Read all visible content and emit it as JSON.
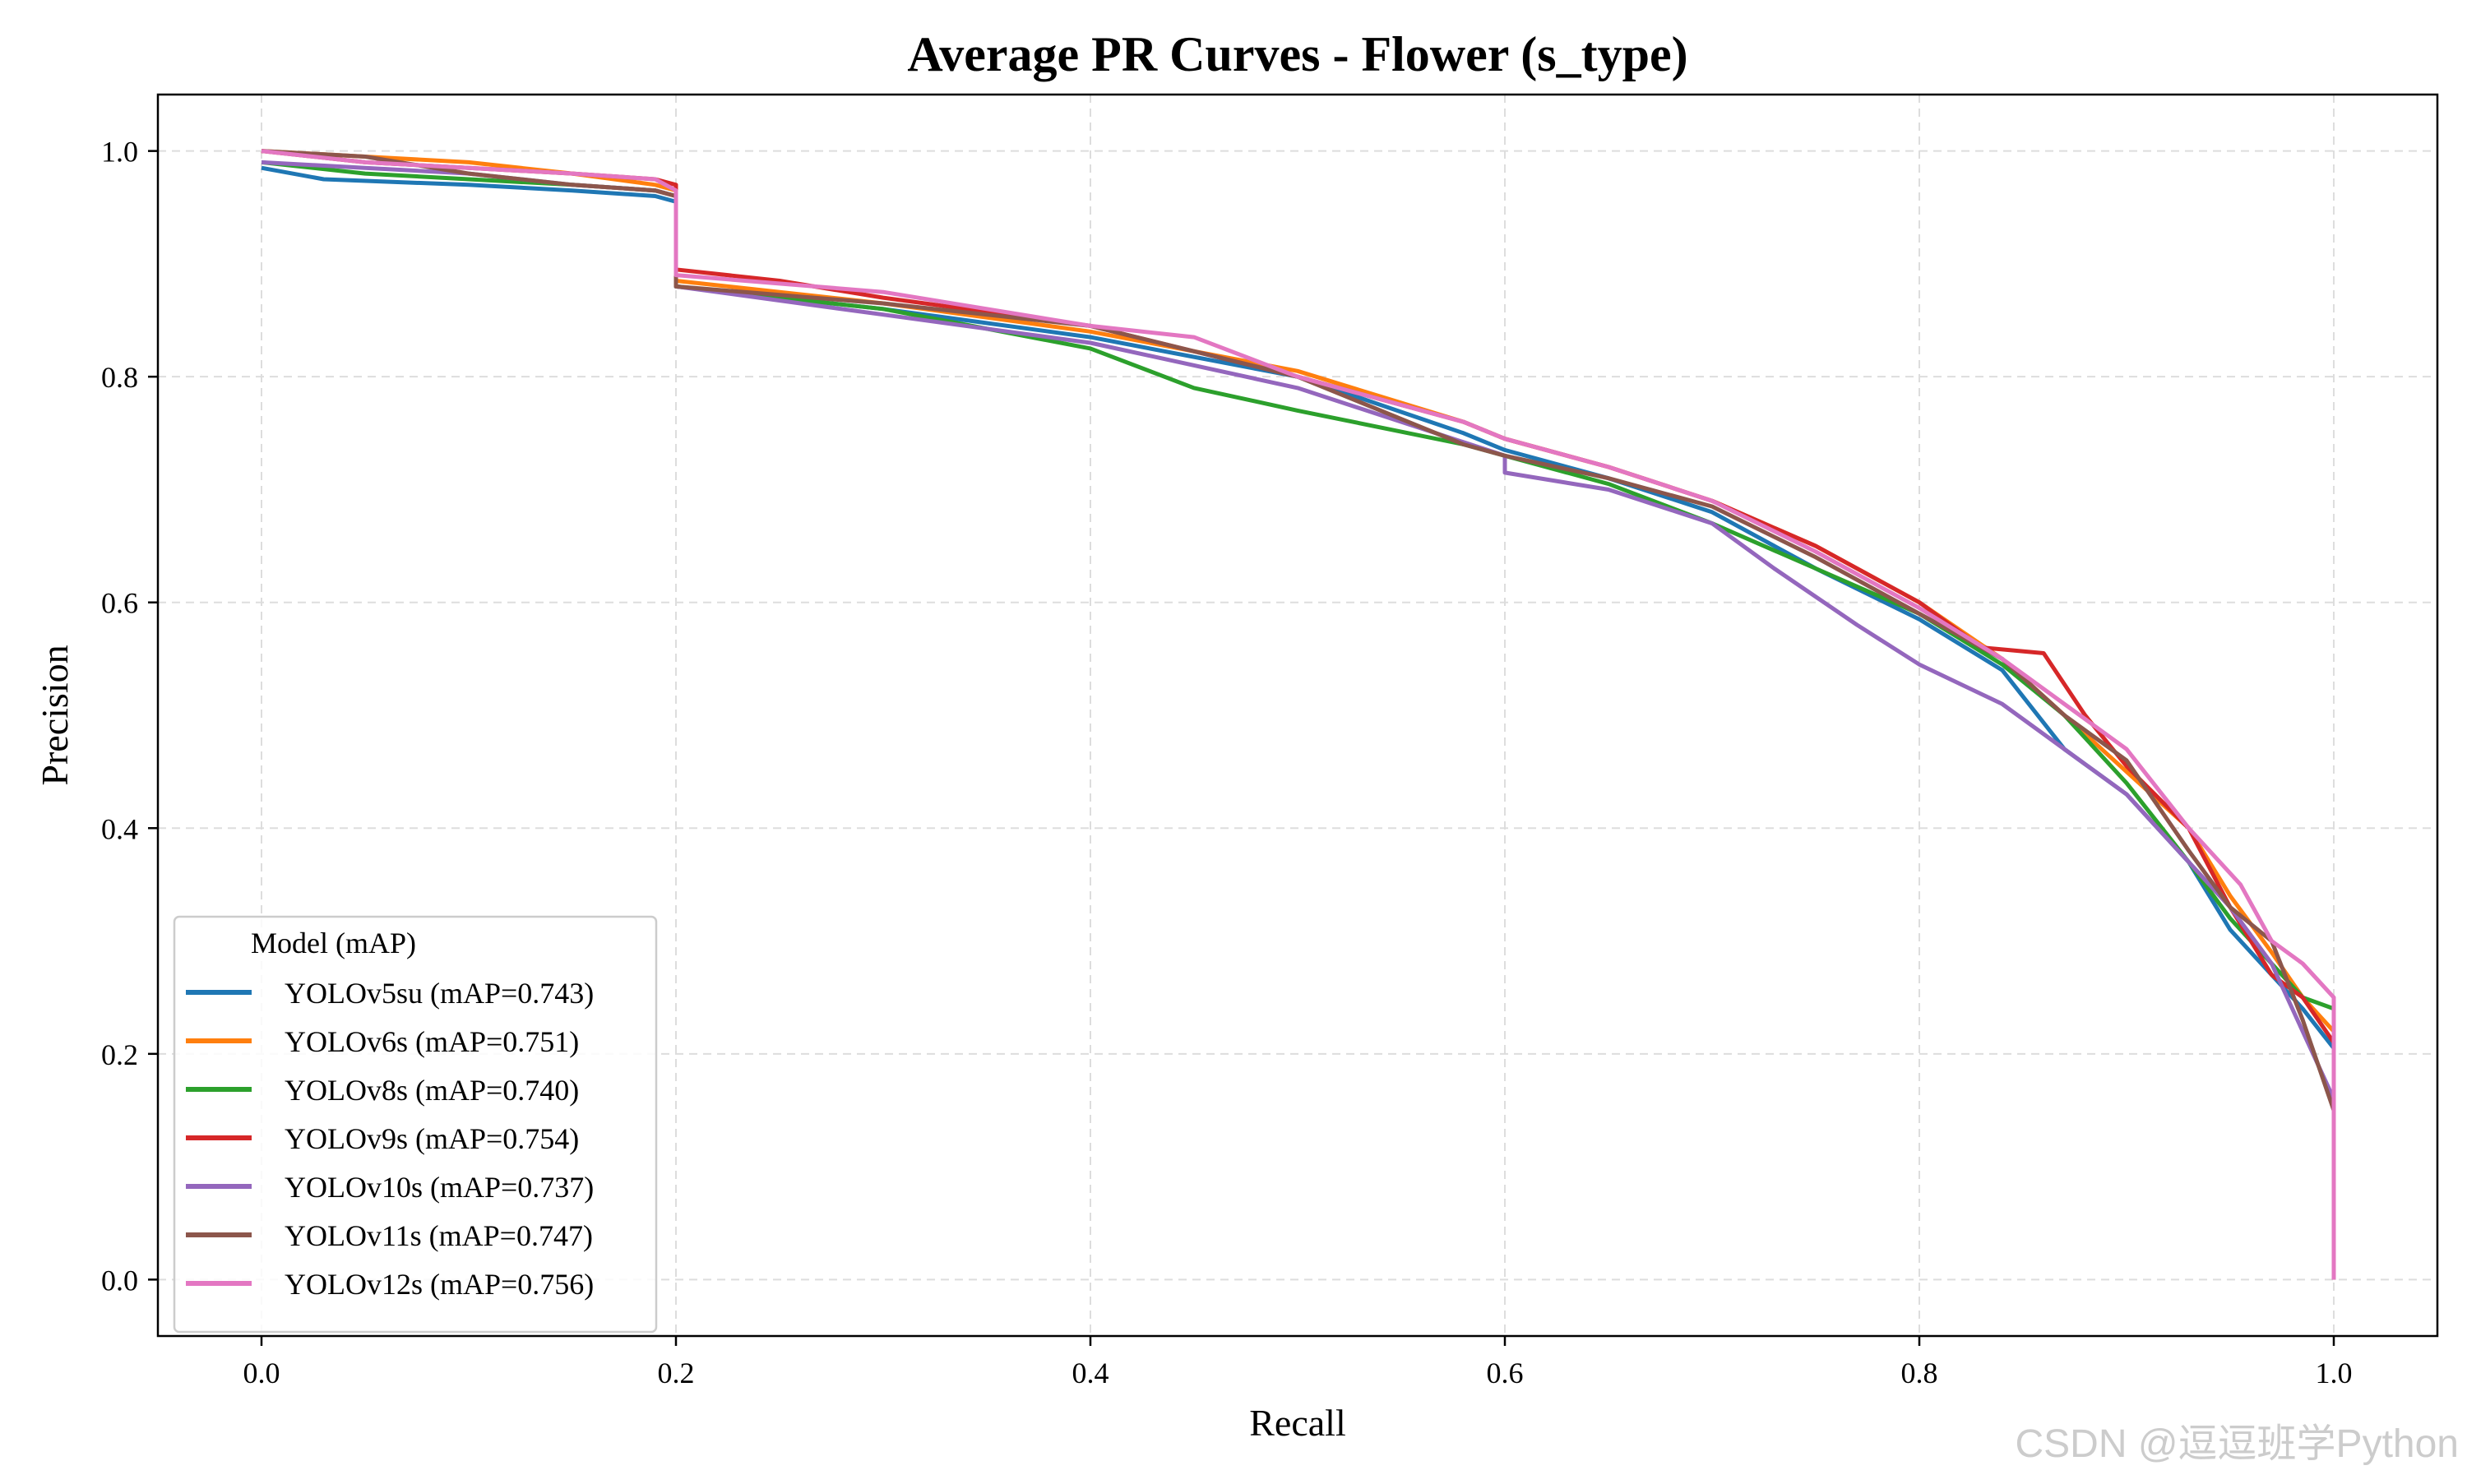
{
  "chart_data": {
    "type": "line",
    "title": "Average PR Curves - Flower (s_type)",
    "xlabel": "Recall",
    "ylabel": "Precision",
    "xlim": [
      -0.05,
      1.05
    ],
    "ylim": [
      -0.05,
      1.05
    ],
    "xticks": [
      0.0,
      0.2,
      0.4,
      0.6,
      0.8,
      1.0
    ],
    "xtick_labels": [
      "0.0",
      "0.2",
      "0.4",
      "0.6",
      "0.8",
      "1.0"
    ],
    "yticks": [
      0.0,
      0.2,
      0.4,
      0.6,
      0.8,
      1.0
    ],
    "ytick_labels": [
      "0.0",
      "0.2",
      "0.4",
      "0.6",
      "0.8",
      "1.0"
    ],
    "grid": true,
    "legend": {
      "title": "Model (mAP)",
      "placement": "lower-left"
    },
    "series": [
      {
        "name": "YOLOv5su (mAP=0.743)",
        "color": "#1f77b4",
        "x": [
          0,
          0.03,
          0.1,
          0.15,
          0.19,
          0.2,
          0.2,
          0.3,
          0.4,
          0.5,
          0.58,
          0.6,
          0.65,
          0.7,
          0.75,
          0.8,
          0.84,
          0.87,
          0.9,
          0.93,
          0.95,
          0.97,
          0.985,
          1.0,
          1.0
        ],
        "y": [
          0.985,
          0.975,
          0.97,
          0.965,
          0.96,
          0.955,
          0.88,
          0.86,
          0.835,
          0.8,
          0.75,
          0.735,
          0.71,
          0.68,
          0.63,
          0.585,
          0.54,
          0.47,
          0.43,
          0.37,
          0.31,
          0.27,
          0.24,
          0.205,
          0.0
        ]
      },
      {
        "name": "YOLOv6s (mAP=0.751)",
        "color": "#ff7f0e",
        "x": [
          0,
          0.05,
          0.1,
          0.15,
          0.19,
          0.2,
          0.2,
          0.3,
          0.4,
          0.5,
          0.58,
          0.6,
          0.65,
          0.7,
          0.75,
          0.8,
          0.84,
          0.87,
          0.9,
          0.93,
          0.95,
          0.97,
          0.985,
          1.0,
          1.0
        ],
        "y": [
          1.0,
          0.995,
          0.99,
          0.98,
          0.97,
          0.965,
          0.885,
          0.865,
          0.84,
          0.805,
          0.76,
          0.745,
          0.72,
          0.69,
          0.65,
          0.6,
          0.55,
          0.5,
          0.45,
          0.4,
          0.34,
          0.29,
          0.25,
          0.22,
          0.0
        ]
      },
      {
        "name": "YOLOv8s (mAP=0.740)",
        "color": "#2ca02c",
        "x": [
          0,
          0.05,
          0.1,
          0.15,
          0.19,
          0.2,
          0.2,
          0.3,
          0.4,
          0.45,
          0.5,
          0.58,
          0.6,
          0.65,
          0.7,
          0.75,
          0.8,
          0.84,
          0.87,
          0.9,
          0.93,
          0.95,
          0.97,
          0.985,
          1.0,
          1.0
        ],
        "y": [
          0.99,
          0.98,
          0.975,
          0.97,
          0.965,
          0.96,
          0.88,
          0.86,
          0.825,
          0.79,
          0.77,
          0.74,
          0.73,
          0.705,
          0.67,
          0.63,
          0.59,
          0.545,
          0.5,
          0.44,
          0.37,
          0.32,
          0.28,
          0.25,
          0.24,
          0.0
        ]
      },
      {
        "name": "YOLOv9s (mAP=0.754)",
        "color": "#d62728",
        "x": [
          0,
          0.05,
          0.1,
          0.15,
          0.19,
          0.2,
          0.2,
          0.25,
          0.3,
          0.4,
          0.5,
          0.58,
          0.6,
          0.65,
          0.7,
          0.75,
          0.8,
          0.83,
          0.86,
          0.88,
          0.9,
          0.93,
          0.95,
          0.97,
          0.985,
          1.0,
          1.0
        ],
        "y": [
          1.0,
          0.99,
          0.985,
          0.98,
          0.975,
          0.97,
          0.895,
          0.885,
          0.87,
          0.845,
          0.8,
          0.76,
          0.745,
          0.72,
          0.69,
          0.65,
          0.6,
          0.56,
          0.555,
          0.5,
          0.455,
          0.4,
          0.33,
          0.27,
          0.25,
          0.21,
          0.0
        ]
      },
      {
        "name": "YOLOv10s (mAP=0.737)",
        "color": "#9467bd",
        "x": [
          0,
          0.05,
          0.1,
          0.15,
          0.19,
          0.2,
          0.2,
          0.3,
          0.4,
          0.5,
          0.6,
          0.6,
          0.65,
          0.7,
          0.73,
          0.77,
          0.8,
          0.84,
          0.87,
          0.9,
          0.93,
          0.95,
          0.97,
          0.985,
          1.0,
          1.0
        ],
        "y": [
          0.99,
          0.985,
          0.98,
          0.97,
          0.965,
          0.96,
          0.88,
          0.855,
          0.83,
          0.79,
          0.73,
          0.715,
          0.7,
          0.67,
          0.63,
          0.58,
          0.545,
          0.51,
          0.47,
          0.43,
          0.37,
          0.33,
          0.28,
          0.22,
          0.16,
          0.0
        ]
      },
      {
        "name": "YOLOv11s (mAP=0.747)",
        "color": "#8c564b",
        "x": [
          0,
          0.05,
          0.1,
          0.15,
          0.19,
          0.2,
          0.2,
          0.3,
          0.4,
          0.5,
          0.58,
          0.6,
          0.65,
          0.7,
          0.75,
          0.8,
          0.84,
          0.87,
          0.9,
          0.93,
          0.95,
          0.97,
          0.985,
          1.0,
          1.0
        ],
        "y": [
          1.0,
          0.995,
          0.98,
          0.97,
          0.965,
          0.96,
          0.88,
          0.865,
          0.845,
          0.8,
          0.74,
          0.73,
          0.71,
          0.685,
          0.64,
          0.59,
          0.55,
          0.5,
          0.46,
          0.38,
          0.33,
          0.3,
          0.23,
          0.15,
          0.0
        ]
      },
      {
        "name": "YOLOv12s (mAP=0.756)",
        "color": "#e377c2",
        "x": [
          0,
          0.05,
          0.1,
          0.15,
          0.19,
          0.2,
          0.2,
          0.3,
          0.4,
          0.45,
          0.5,
          0.58,
          0.6,
          0.65,
          0.7,
          0.75,
          0.8,
          0.84,
          0.87,
          0.9,
          0.93,
          0.955,
          0.97,
          0.985,
          1.0,
          1.0
        ],
        "y": [
          1.0,
          0.99,
          0.985,
          0.98,
          0.975,
          0.965,
          0.89,
          0.875,
          0.845,
          0.835,
          0.8,
          0.76,
          0.745,
          0.72,
          0.69,
          0.645,
          0.595,
          0.55,
          0.51,
          0.47,
          0.4,
          0.35,
          0.3,
          0.28,
          0.25,
          0.0
        ]
      }
    ]
  },
  "watermark": "CSDN @逗逗班学Python"
}
